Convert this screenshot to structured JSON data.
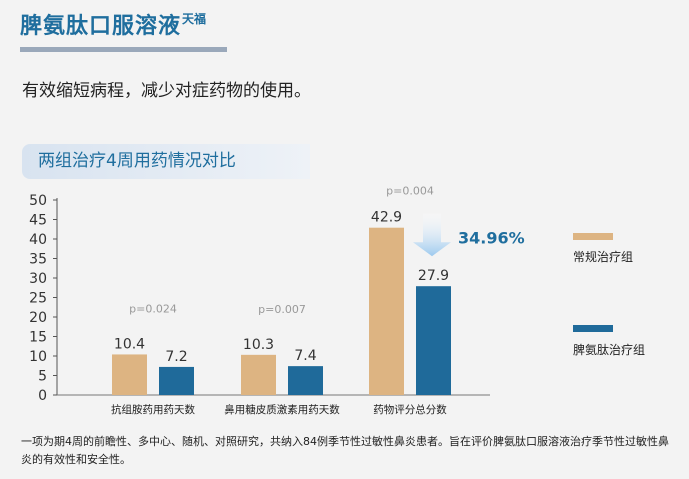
{
  "header": {
    "product_title": "脾氨肽口服溶液",
    "brand_superscript": "天福",
    "lead_text": "有效缩短病程，减少对症药物的使用。"
  },
  "section": {
    "title": "两组治疗4周用药情况对比"
  },
  "colors": {
    "conventional": "#ddb482",
    "pidotimod": "#1f6a9a",
    "arrow": "#9cc9ee",
    "pct_text": "#1f6e9e"
  },
  "chart_data": {
    "type": "bar",
    "categories": [
      "抗组胺药用药天数",
      "鼻用糖皮质激素用药天数",
      "药物评分总分数"
    ],
    "series": [
      {
        "name": "常规治疗组",
        "values": [
          10.4,
          10.3,
          42.9
        ],
        "labels": [
          "10.4",
          "10.3",
          "42.9"
        ]
      },
      {
        "name": "脾氨肽治疗组",
        "values": [
          7.2,
          7.4,
          27.9
        ],
        "labels": [
          "7.2",
          "7.4",
          "27.9"
        ]
      }
    ],
    "p_values": [
      "p=0.024",
      "p=0.007",
      "p=0.004"
    ],
    "ylim": [
      0,
      50
    ],
    "yticks": [
      "0",
      "5",
      "10",
      "15",
      "20",
      "25",
      "30",
      "35",
      "40",
      "45",
      "50"
    ],
    "annotation": "34.96%",
    "legend_position": "right",
    "grid": false
  },
  "footnote": "一项为期4周的前瞻性、多中心、随机、对照研究，共纳入84例季节性过敏性鼻炎患者。旨在评价脾氨肽口服溶液治疗季节性过敏性鼻炎的有效性和安全性。"
}
